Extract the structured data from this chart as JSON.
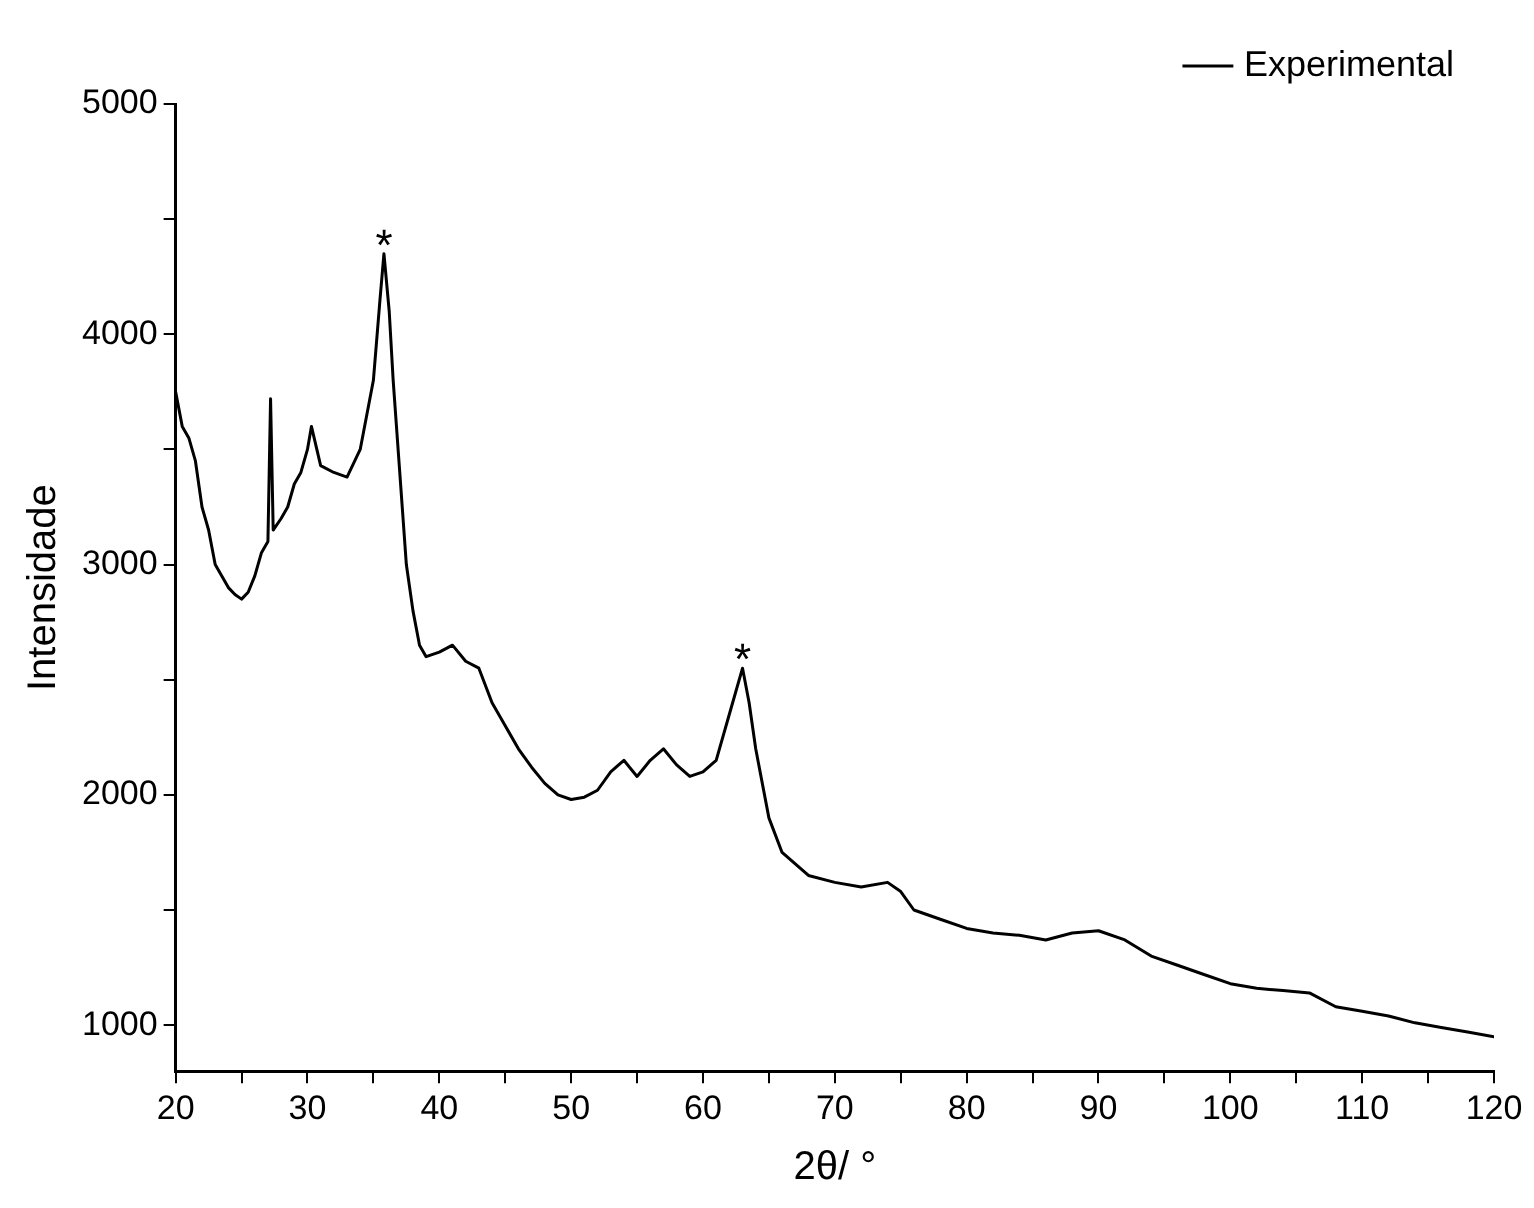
{
  "chart_data": {
    "type": "line",
    "xlabel": "2θ/ °",
    "ylabel": "Intensidade",
    "xlim": [
      20,
      120
    ],
    "ylim": [
      800,
      5000
    ],
    "xticks": [
      20,
      {
        "value": 25,
        "label": null
      },
      30,
      {
        "value": 35,
        "label": null
      },
      40,
      {
        "value": 45,
        "label": null
      },
      50,
      {
        "value": 55,
        "label": null
      },
      60,
      {
        "value": 65,
        "label": null
      },
      70,
      {
        "value": 75,
        "label": null
      },
      80,
      {
        "value": 85,
        "label": null
      },
      90,
      {
        "value": 95,
        "label": null
      },
      100,
      {
        "value": 105,
        "label": null
      },
      110,
      {
        "value": 115,
        "label": null
      },
      120
    ],
    "yticks": [
      1000,
      {
        "value": 1500,
        "label": null
      },
      2000,
      {
        "value": 2500,
        "label": null
      },
      3000,
      {
        "value": 3500,
        "label": null
      },
      4000,
      {
        "value": 4500,
        "label": null
      },
      5000
    ],
    "grid": false,
    "legend": "top right",
    "marker": "none",
    "line_style": "solid",
    "annotations": [
      {
        "text": "*",
        "x": 35.8,
        "y": 4350
      },
      {
        "text": "*",
        "x": 63,
        "y": 2550
      }
    ],
    "series": [
      {
        "name": "Experimental",
        "color": "#000000",
        "x": [
          20,
          20.5,
          21,
          21.5,
          22,
          22.5,
          23,
          23.5,
          24,
          24.5,
          25,
          25.5,
          26,
          26.5,
          27,
          27.2,
          27.4,
          28,
          28.5,
          29,
          29.5,
          30,
          30.3,
          31,
          32,
          33,
          34,
          35,
          35.5,
          35.8,
          36.2,
          36.5,
          37,
          37.5,
          38,
          38.5,
          39,
          40,
          41,
          42,
          43,
          44,
          45,
          46,
          47,
          48,
          49,
          50,
          51,
          52,
          53,
          54,
          55,
          56,
          57,
          58,
          59,
          60,
          61,
          62,
          63,
          63.5,
          64,
          65,
          66,
          67,
          68,
          70,
          72,
          74,
          75,
          76,
          78,
          80,
          82,
          84,
          86,
          88,
          90,
          92,
          94,
          96,
          98,
          100,
          102,
          104,
          106,
          108,
          110,
          112,
          114,
          116,
          118,
          120
        ],
        "values": [
          3750,
          3600,
          3550,
          3450,
          3250,
          3150,
          3000,
          2950,
          2900,
          2870,
          2850,
          2880,
          2950,
          3050,
          3100,
          3720,
          3150,
          3200,
          3250,
          3350,
          3400,
          3500,
          3600,
          3430,
          3400,
          3380,
          3500,
          3800,
          4150,
          4350,
          4100,
          3800,
          3400,
          3000,
          2800,
          2650,
          2600,
          2620,
          2650,
          2580,
          2550,
          2400,
          2300,
          2200,
          2120,
          2050,
          2000,
          1980,
          1990,
          2020,
          2100,
          2150,
          2080,
          2150,
          2200,
          2130,
          2080,
          2100,
          2150,
          2350,
          2550,
          2400,
          2200,
          1900,
          1750,
          1700,
          1650,
          1620,
          1600,
          1620,
          1580,
          1500,
          1460,
          1420,
          1400,
          1390,
          1370,
          1400,
          1410,
          1370,
          1300,
          1260,
          1220,
          1180,
          1160,
          1150,
          1140,
          1080,
          1060,
          1040,
          1010,
          990,
          970,
          950
        ]
      }
    ]
  }
}
